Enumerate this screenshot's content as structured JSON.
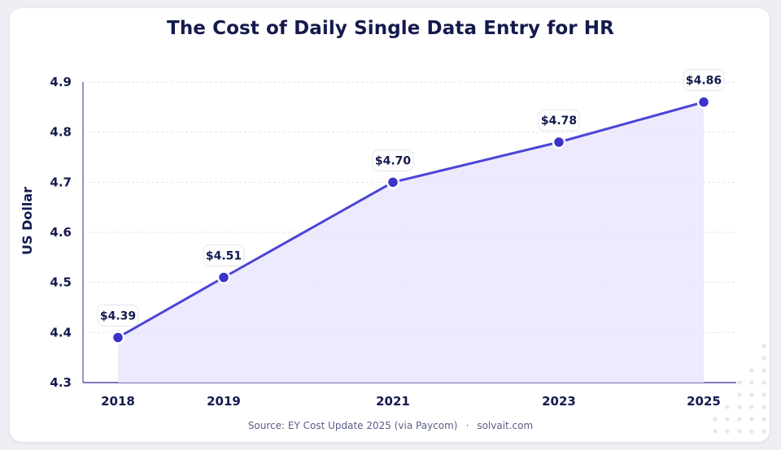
{
  "title": "The Cost of Daily Single Data Entry for HR",
  "source": {
    "text": "Source: EY Cost Update 2025 (via Paycom)",
    "separator": "·",
    "site": "solvait.com"
  },
  "colors": {
    "line": "#4b45d6",
    "marker": "#3a33c9",
    "area": "#ebe8fd",
    "gridline": "#e2e2ec",
    "text": "#141a4d"
  },
  "chart_data": {
    "type": "line",
    "title": "The Cost of Daily Single Data Entry for HR",
    "xlabel": "",
    "ylabel": "US Dollar",
    "x": [
      2018,
      2019,
      2021,
      2023,
      2025
    ],
    "x_tick_labels": [
      "2018",
      "2019",
      "2021",
      "2023",
      "2025"
    ],
    "values": [
      4.39,
      4.51,
      4.7,
      4.78,
      4.86
    ],
    "data_labels": [
      "$4.39",
      "$4.51",
      "$4.70",
      "$4.78",
      "$4.86"
    ],
    "ylim": [
      4.3,
      4.9
    ],
    "y_ticks": [
      4.3,
      4.4,
      4.5,
      4.6,
      4.7,
      4.8,
      4.9
    ],
    "y_tick_labels": [
      "4.3",
      "4.4",
      "4.5",
      "4.6",
      "4.7",
      "4.8",
      "4.9"
    ],
    "grid": "horizontal dashed",
    "area_fill": true,
    "legend": "none"
  }
}
